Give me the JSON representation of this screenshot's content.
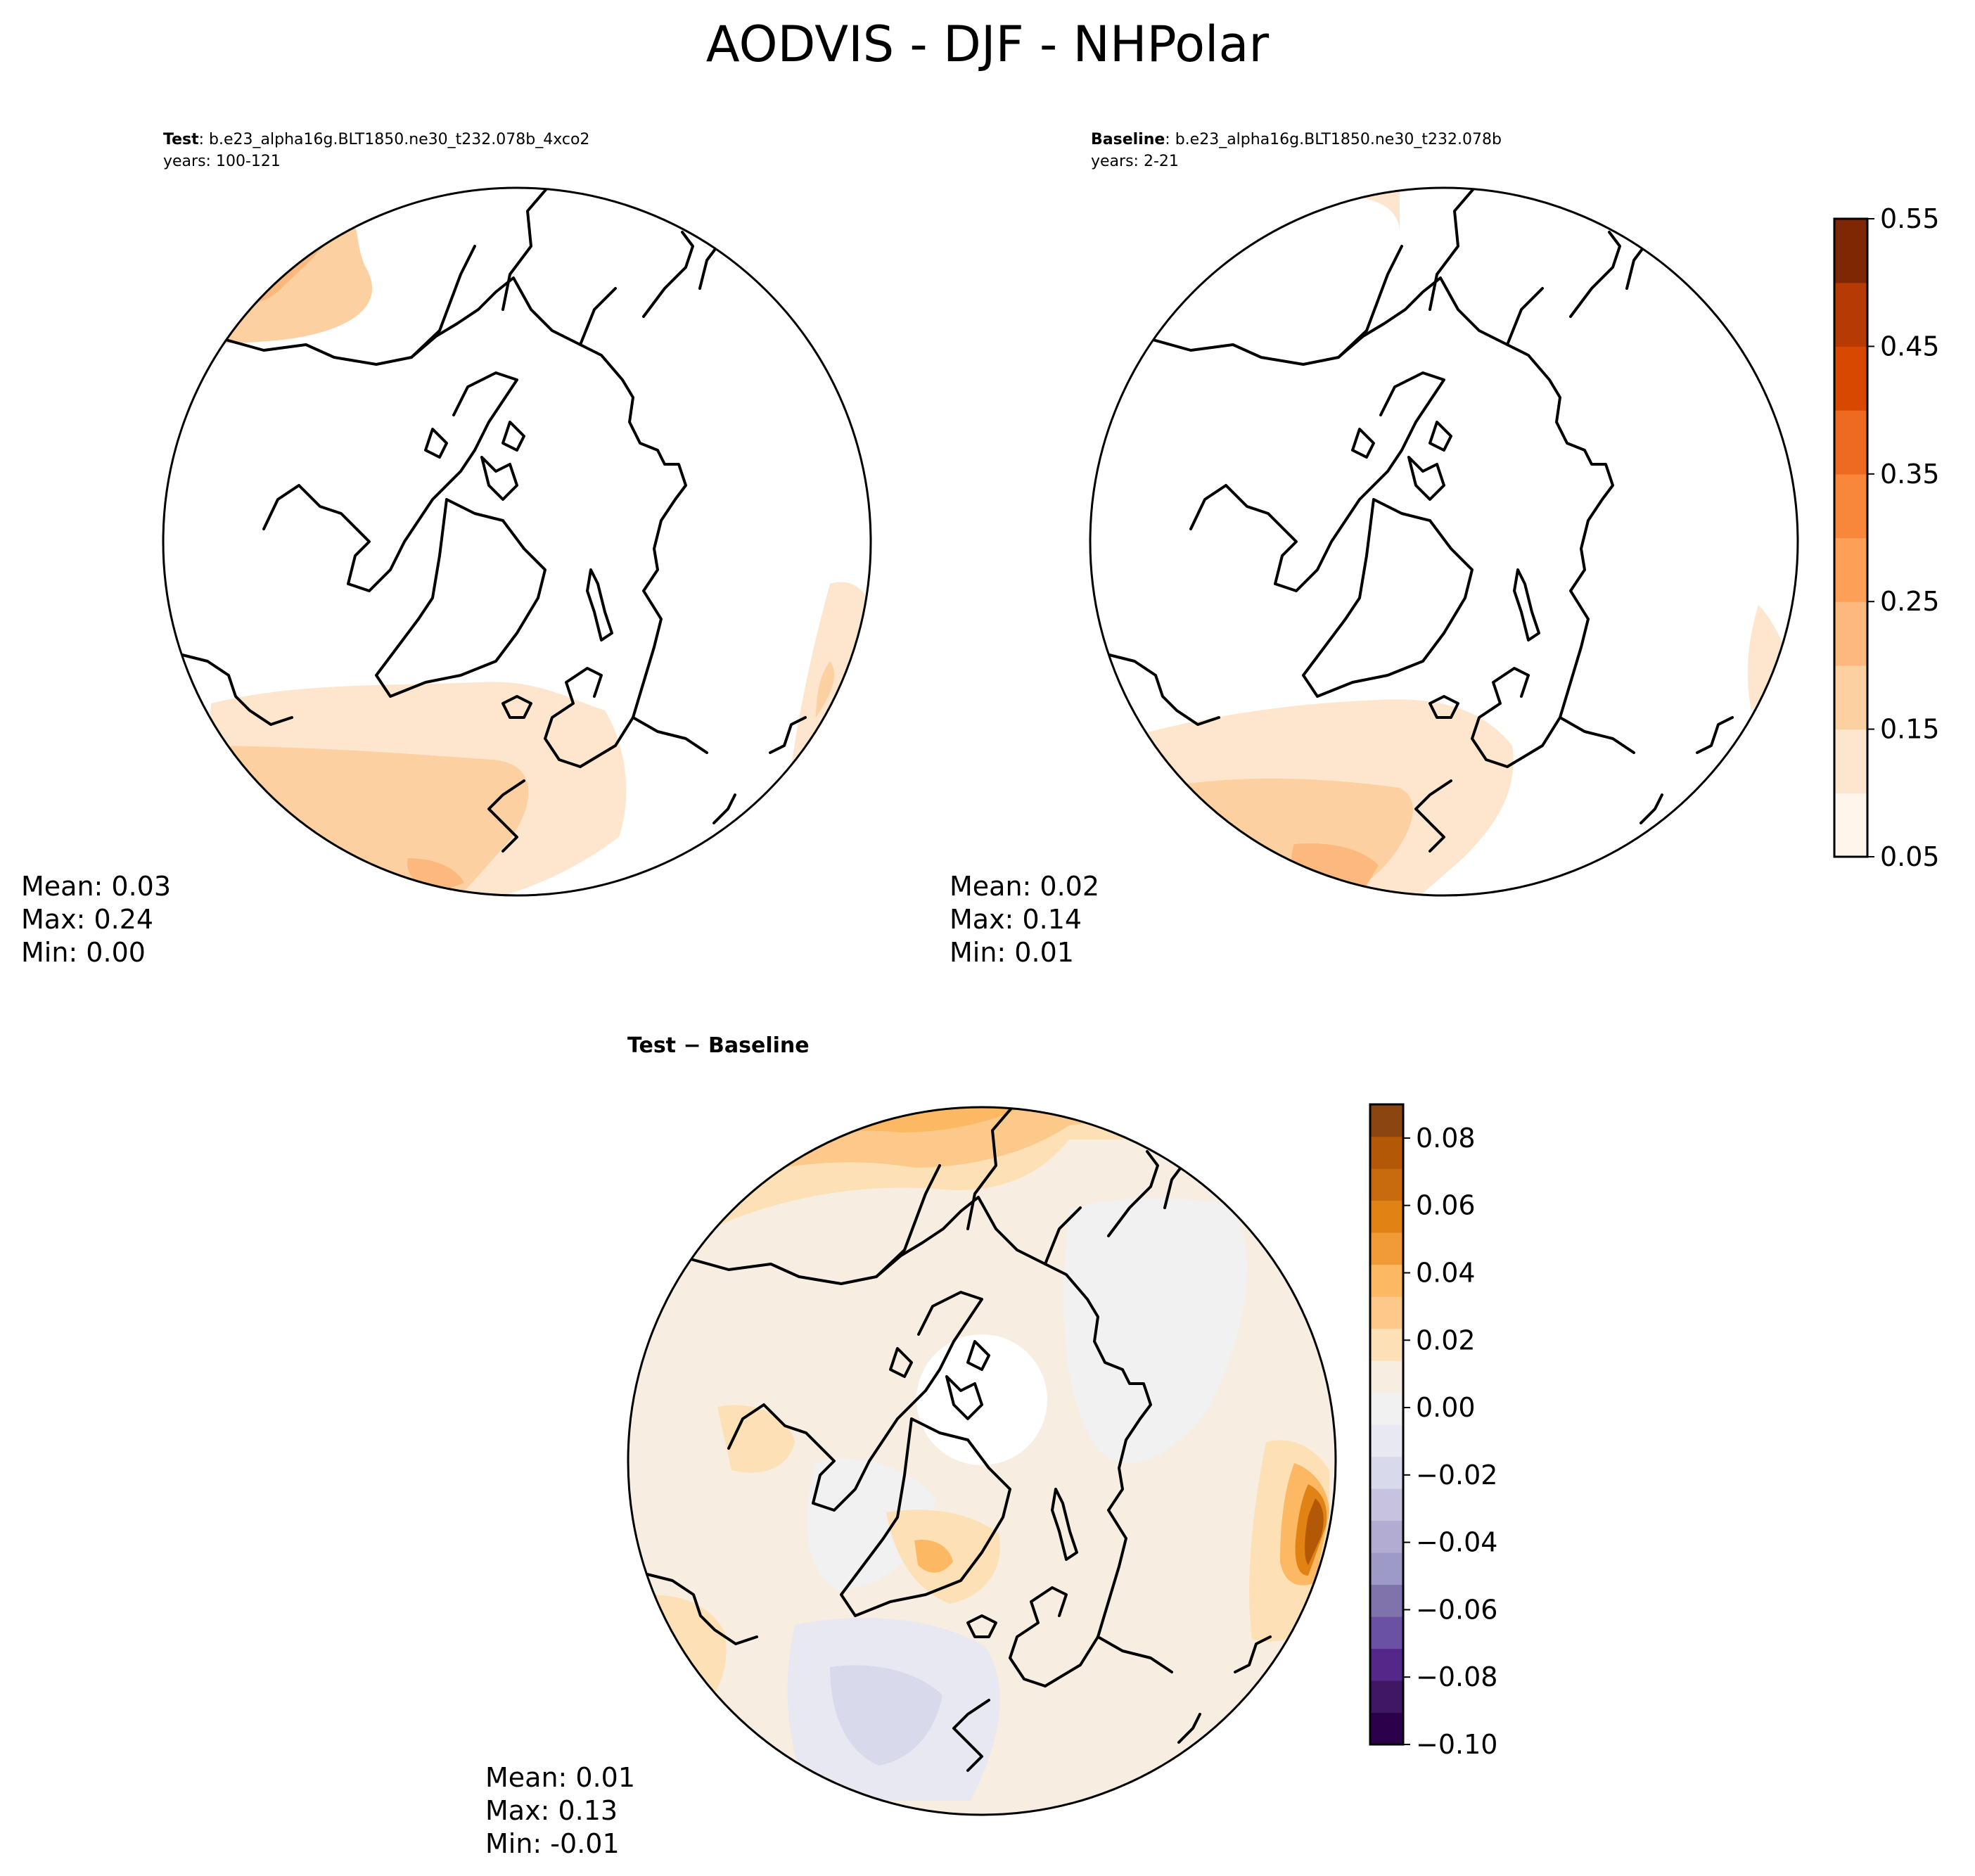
{
  "figure": {
    "title": "AODVIS - DJF - NHPolar"
  },
  "panels": {
    "test": {
      "label": "Test",
      "case": ": b.e23_alpha16g.BLT1850.ne30_t232.078b_4xco2",
      "years": "years: 100-121",
      "stats": [
        "Mean:  0.03",
        "Max:  0.24",
        "Min:  0.00"
      ]
    },
    "baseline": {
      "label": "Baseline",
      "case": ": b.e23_alpha16g.BLT1850.ne30_t232.078b",
      "years": "years: 2-21",
      "stats": [
        "Mean:  0.02",
        "Max:  0.14",
        "Min:  0.01"
      ]
    },
    "diff": {
      "label": "Test − Baseline",
      "stats": [
        "Mean:  0.01",
        "Max:  0.13",
        "Min: -0.01"
      ]
    }
  },
  "chart_data": [
    {
      "type": "heatmap",
      "title": "Test",
      "projection": "north-polar-stereographic",
      "variable": "AODVIS",
      "season": "DJF",
      "mean": 0.03,
      "max": 0.24,
      "min": 0.0
    },
    {
      "type": "heatmap",
      "title": "Baseline",
      "projection": "north-polar-stereographic",
      "variable": "AODVIS",
      "season": "DJF",
      "mean": 0.02,
      "max": 0.14,
      "min": 0.01
    },
    {
      "type": "heatmap",
      "title": "Test − Baseline",
      "projection": "north-polar-stereographic",
      "variable": "AODVIS",
      "season": "DJF",
      "mean": 0.01,
      "max": 0.13,
      "min": -0.01
    }
  ],
  "colorbars": {
    "main": {
      "range": [
        0.05,
        0.55
      ],
      "step": 0.05,
      "tick_labels": [
        "0.05",
        "0.15",
        "0.25",
        "0.35",
        "0.45",
        "0.55"
      ],
      "colors": [
        "#fff5eb",
        "#fee6ce",
        "#fdd0a2",
        "#fdb97d",
        "#fda057",
        "#f8863b",
        "#ee6a20",
        "#d94801",
        "#b53a03",
        "#7f2704"
      ]
    },
    "diff": {
      "range": [
        -0.1,
        0.09
      ],
      "step": 0.01,
      "tick_labels": [
        "−0.10",
        "−0.08",
        "−0.06",
        "−0.04",
        "−0.02",
        "0.00",
        "0.02",
        "0.04",
        "0.06",
        "0.08"
      ],
      "tick_values": [
        -0.1,
        -0.08,
        -0.06,
        -0.04,
        -0.02,
        0.0,
        0.02,
        0.04,
        0.06,
        0.08
      ],
      "colors": [
        "#2d004b",
        "#3f1763",
        "#542788",
        "#6a51a3",
        "#8073ac",
        "#9e9ac8",
        "#b2abd2",
        "#c7c2e0",
        "#d8daeb",
        "#e7e8f1",
        "#f1f1f2",
        "#f7ede0",
        "#fee0b6",
        "#fdc98a",
        "#fdb863",
        "#f09a38",
        "#e08214",
        "#c86a0e",
        "#b35806",
        "#8a4510"
      ]
    }
  }
}
